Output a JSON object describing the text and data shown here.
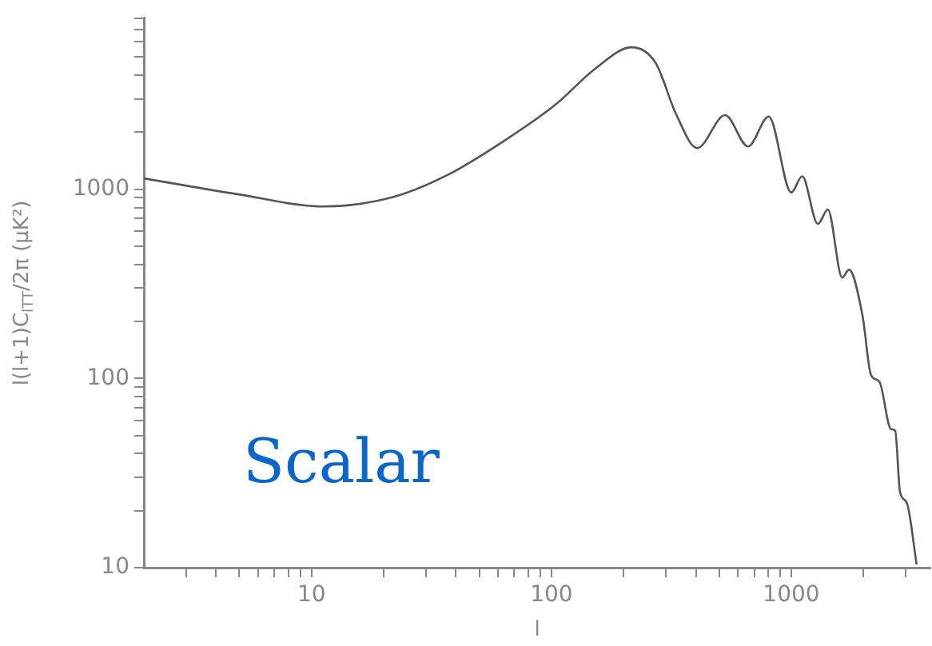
{
  "chart_data": {
    "type": "line",
    "xlabel": "l",
    "ylabel": "l(l+1)C$_{lTT}$/2π (μK²)",
    "log": "xy",
    "grid": false,
    "legend": false,
    "marker": "none",
    "line_style": "solid",
    "xlim": [
      2,
      3800
    ],
    "ylim": [
      10,
      8000
    ],
    "xticks": [
      {
        "value": 3,
        "label": null
      },
      {
        "value": 4,
        "label": null
      },
      {
        "value": 5,
        "label": null
      },
      {
        "value": 6,
        "label": null
      },
      {
        "value": 7,
        "label": null
      },
      {
        "value": 8,
        "label": null
      },
      {
        "value": 9,
        "label": null
      },
      10,
      {
        "value": 20,
        "label": null
      },
      {
        "value": 30,
        "label": null
      },
      {
        "value": 40,
        "label": null
      },
      {
        "value": 50,
        "label": null
      },
      {
        "value": 60,
        "label": null
      },
      {
        "value": 70,
        "label": null
      },
      {
        "value": 80,
        "label": null
      },
      {
        "value": 90,
        "label": null
      },
      100,
      {
        "value": 200,
        "label": null
      },
      {
        "value": 300,
        "label": null
      },
      {
        "value": 400,
        "label": null
      },
      {
        "value": 500,
        "label": null
      },
      {
        "value": 600,
        "label": null
      },
      {
        "value": 700,
        "label": null
      },
      {
        "value": 800,
        "label": null
      },
      {
        "value": 900,
        "label": null
      },
      1000,
      {
        "value": 2000,
        "label": null
      },
      {
        "value": 3000,
        "label": null
      }
    ],
    "yticks": [
      10,
      {
        "value": 20,
        "label": null
      },
      {
        "value": 30,
        "label": null
      },
      {
        "value": 40,
        "label": null
      },
      {
        "value": 50,
        "label": null
      },
      {
        "value": 60,
        "label": null
      },
      {
        "value": 70,
        "label": null
      },
      {
        "value": 80,
        "label": null
      },
      {
        "value": 90,
        "label": null
      },
      100,
      {
        "value": 200,
        "label": null
      },
      {
        "value": 300,
        "label": null
      },
      {
        "value": 400,
        "label": null
      },
      {
        "value": 500,
        "label": null
      },
      {
        "value": 600,
        "label": null
      },
      {
        "value": 700,
        "label": null
      },
      {
        "value": 800,
        "label": null
      },
      {
        "value": 900,
        "label": null
      },
      1000,
      {
        "value": 2000,
        "label": null
      },
      {
        "value": 3000,
        "label": null
      },
      {
        "value": 4000,
        "label": null
      },
      {
        "value": 5000,
        "label": null
      },
      {
        "value": 6000,
        "label": null
      },
      {
        "value": 7000,
        "label": null
      },
      {
        "value": 8000,
        "label": null
      }
    ],
    "annotations": [
      "Scalar"
    ],
    "x": [
      2,
      4.8,
      11.3,
      22,
      37,
      61,
      103,
      154,
      216,
      272,
      330,
      405,
      530,
      660,
      805,
      1000,
      1110,
      1290,
      1420,
      1630,
      1740,
      1980,
      2150,
      2330,
      2600,
      2710,
      2840,
      3030,
      3330
    ],
    "series": [
      {
        "color": "#555555",
        "values": [
          1140,
          945,
          810,
          910,
          1190,
          1740,
          2770,
          4380,
          5620,
          4640,
          2510,
          1650,
          2460,
          1680,
          2420,
          960,
          1170,
          655,
          780,
          341,
          375,
          215,
          104,
          96,
          54,
          53,
          25,
          22,
          10.4
        ]
      }
    ]
  }
}
